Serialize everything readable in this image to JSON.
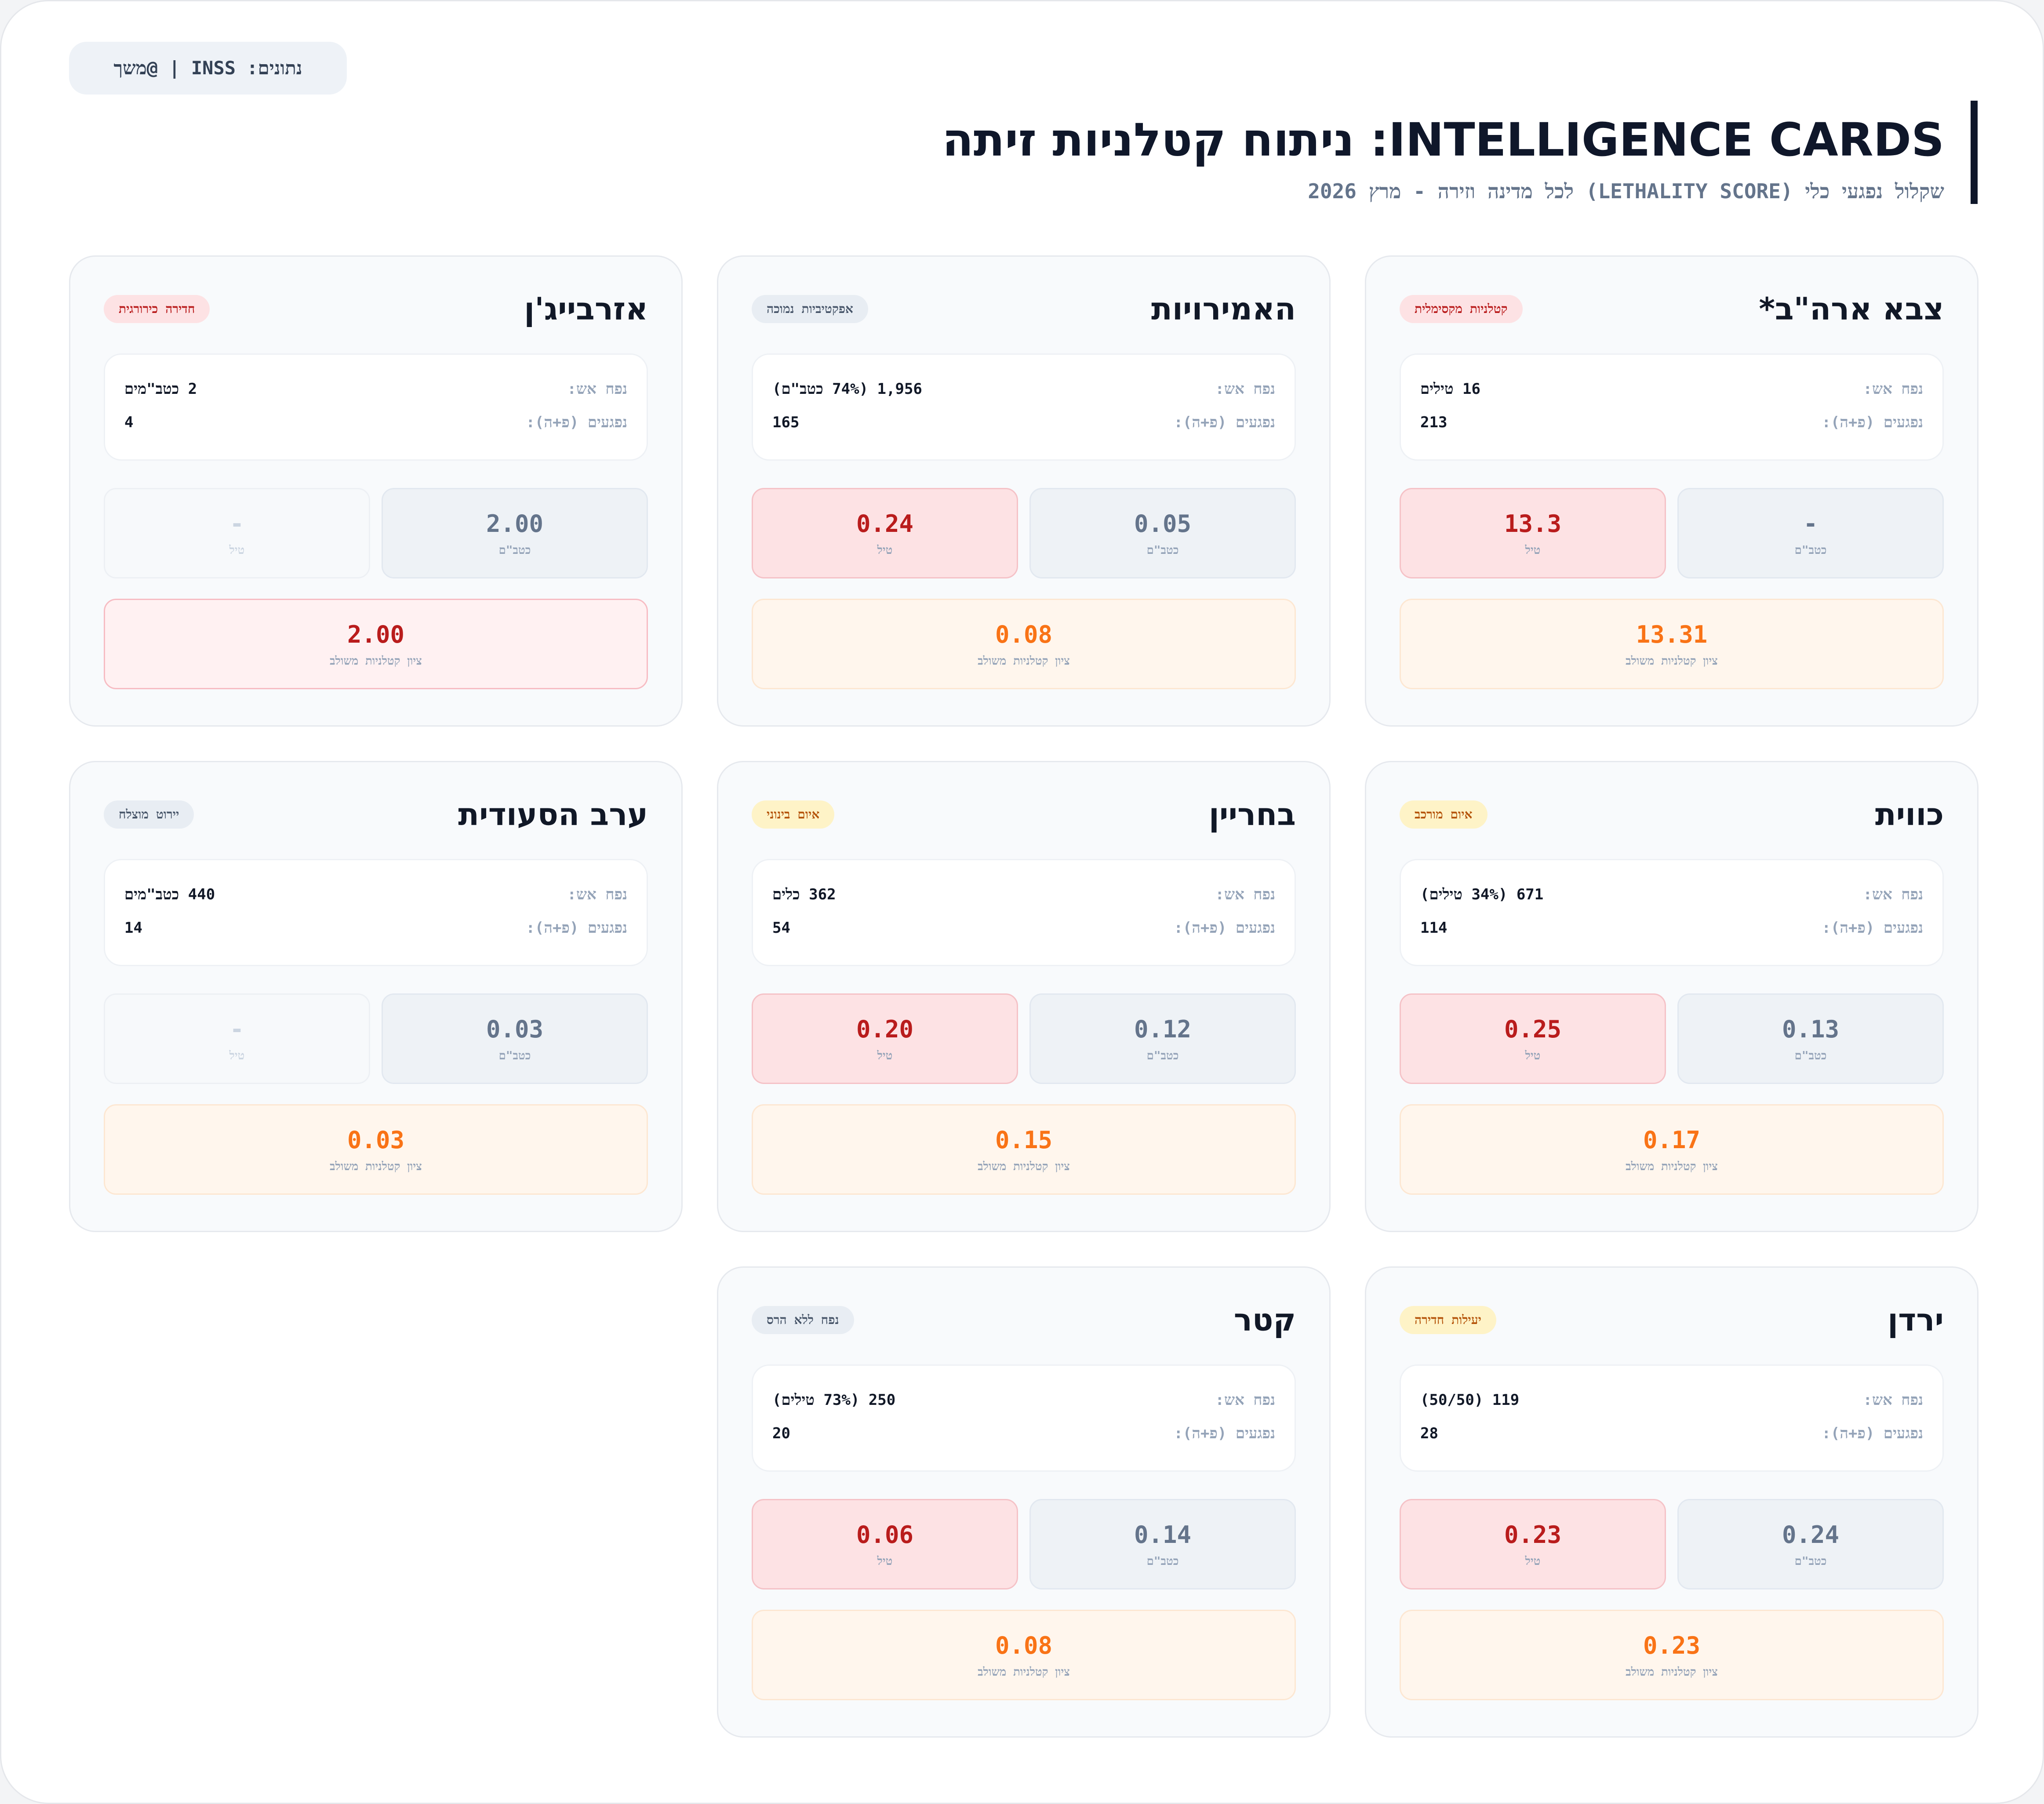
{
  "source": "נתונים: INSS | @משך",
  "header": {
    "title": "INTELLIGENCE CARDS: ניתוח קטלניות זיתה",
    "subtitle": "שקלול נפגעי כלי (LETHALITY SCORE) לכל מדינה וזירה - מרץ 2026"
  },
  "labels": {
    "fire_volume": "נפח אש:",
    "casualties": "נפגעים (פ+ה):",
    "uav": "כטב\"ם",
    "missile": "טיל",
    "combined": "ציון קטלניות משולב"
  },
  "cards": [
    {
      "country": "צבא ארה\"ב*",
      "badge": "קטלניות מקסימלית",
      "badge_tone": "red",
      "fire": "16 טילים",
      "casualties": "213",
      "uav_score": "-",
      "missile_score": "13.3",
      "missile_active": true,
      "combined_score": "13.31",
      "combined_tone": "orange"
    },
    {
      "country": "האמירויות",
      "badge": "אפקטיביות נמוכה",
      "badge_tone": "gray",
      "fire": "1,956 (74% כטב\"ם)",
      "casualties": "165",
      "uav_score": "0.05",
      "missile_score": "0.24",
      "missile_active": true,
      "combined_score": "0.08",
      "combined_tone": "orange"
    },
    {
      "country": "אזרבייג'ן",
      "badge": "חדירה כירורגית",
      "badge_tone": "red",
      "fire": "2 כטב\"מים",
      "casualties": "4",
      "uav_score": "2.00",
      "missile_score": "-",
      "missile_active": false,
      "combined_score": "2.00",
      "combined_tone": "red"
    },
    {
      "country": "כווית",
      "badge": "איום מורכב",
      "badge_tone": "yellow",
      "fire": "671 (34% טילים)",
      "casualties": "114",
      "uav_score": "0.13",
      "missile_score": "0.25",
      "missile_active": true,
      "combined_score": "0.17",
      "combined_tone": "orange"
    },
    {
      "country": "בחריין",
      "badge": "איום בינוני",
      "badge_tone": "yellow",
      "fire": "362 כלים",
      "casualties": "54",
      "uav_score": "0.12",
      "missile_score": "0.20",
      "missile_active": true,
      "combined_score": "0.15",
      "combined_tone": "orange"
    },
    {
      "country": "ערב הסעודית",
      "badge": "יירוט מוצלח",
      "badge_tone": "gray",
      "fire": "440 כטב\"מים",
      "casualties": "14",
      "uav_score": "0.03",
      "missile_score": "-",
      "missile_active": false,
      "combined_score": "0.03",
      "combined_tone": "orange"
    },
    {
      "country": "ירדן",
      "badge": "יעילות חדירה",
      "badge_tone": "yellow",
      "fire": "119 (50/50)",
      "casualties": "28",
      "uav_score": "0.24",
      "missile_score": "0.23",
      "missile_active": true,
      "combined_score": "0.23",
      "combined_tone": "orange"
    },
    {
      "country": "קטר",
      "badge": "נפח ללא הרס",
      "badge_tone": "gray",
      "fire": "250 (73% טילים)",
      "casualties": "20",
      "uav_score": "0.14",
      "missile_score": "0.06",
      "missile_active": true,
      "combined_score": "0.08",
      "combined_tone": "orange"
    }
  ]
}
